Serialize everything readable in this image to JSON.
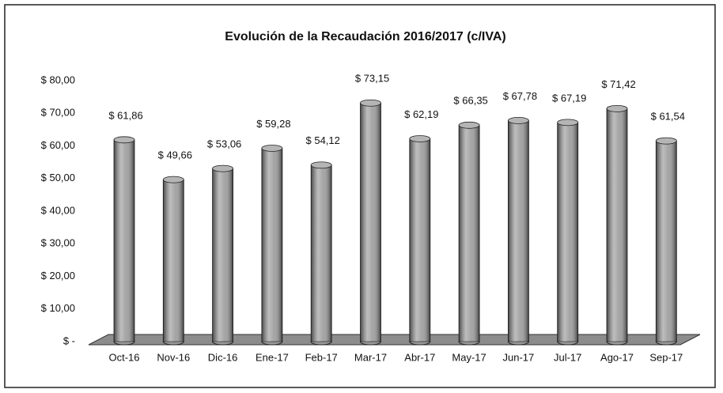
{
  "chart_data": {
    "type": "bar",
    "title": "Evolución de la Recaudación 2016/2017 (c/IVA)",
    "categories": [
      "Oct-16",
      "Nov-16",
      "Dic-16",
      "Ene-17",
      "Feb-17",
      "Mar-17",
      "Abr-17",
      "May-17",
      "Jun-17",
      "Jul-17",
      "Ago-17",
      "Sep-17"
    ],
    "values": [
      61.86,
      49.66,
      53.06,
      59.28,
      54.12,
      73.15,
      62.19,
      66.35,
      67.78,
      67.19,
      71.42,
      61.54
    ],
    "value_labels": [
      "$ 61,86",
      "$ 49,66",
      "$ 53,06",
      "$ 59,28",
      "$ 54,12",
      "$ 73,15",
      "$ 62,19",
      "$ 66,35",
      "$ 67,78",
      "$ 67,19",
      "$ 71,42",
      "$ 61,54"
    ],
    "color": "#9a9a9a",
    "ylim": [
      0,
      80
    ],
    "yticks": [
      {
        "value": 0,
        "label": "$ -"
      },
      {
        "value": 10,
        "label": "$ 10,00"
      },
      {
        "value": 20,
        "label": "$ 20,00"
      },
      {
        "value": 30,
        "label": "$ 30,00"
      },
      {
        "value": 40,
        "label": "$ 40,00"
      },
      {
        "value": 50,
        "label": "$ 50,00"
      },
      {
        "value": 60,
        "label": "$ 60,00"
      },
      {
        "value": 70,
        "label": "$ 70,00"
      },
      {
        "value": 80,
        "label": "$ 80,00"
      }
    ],
    "grid": false
  }
}
